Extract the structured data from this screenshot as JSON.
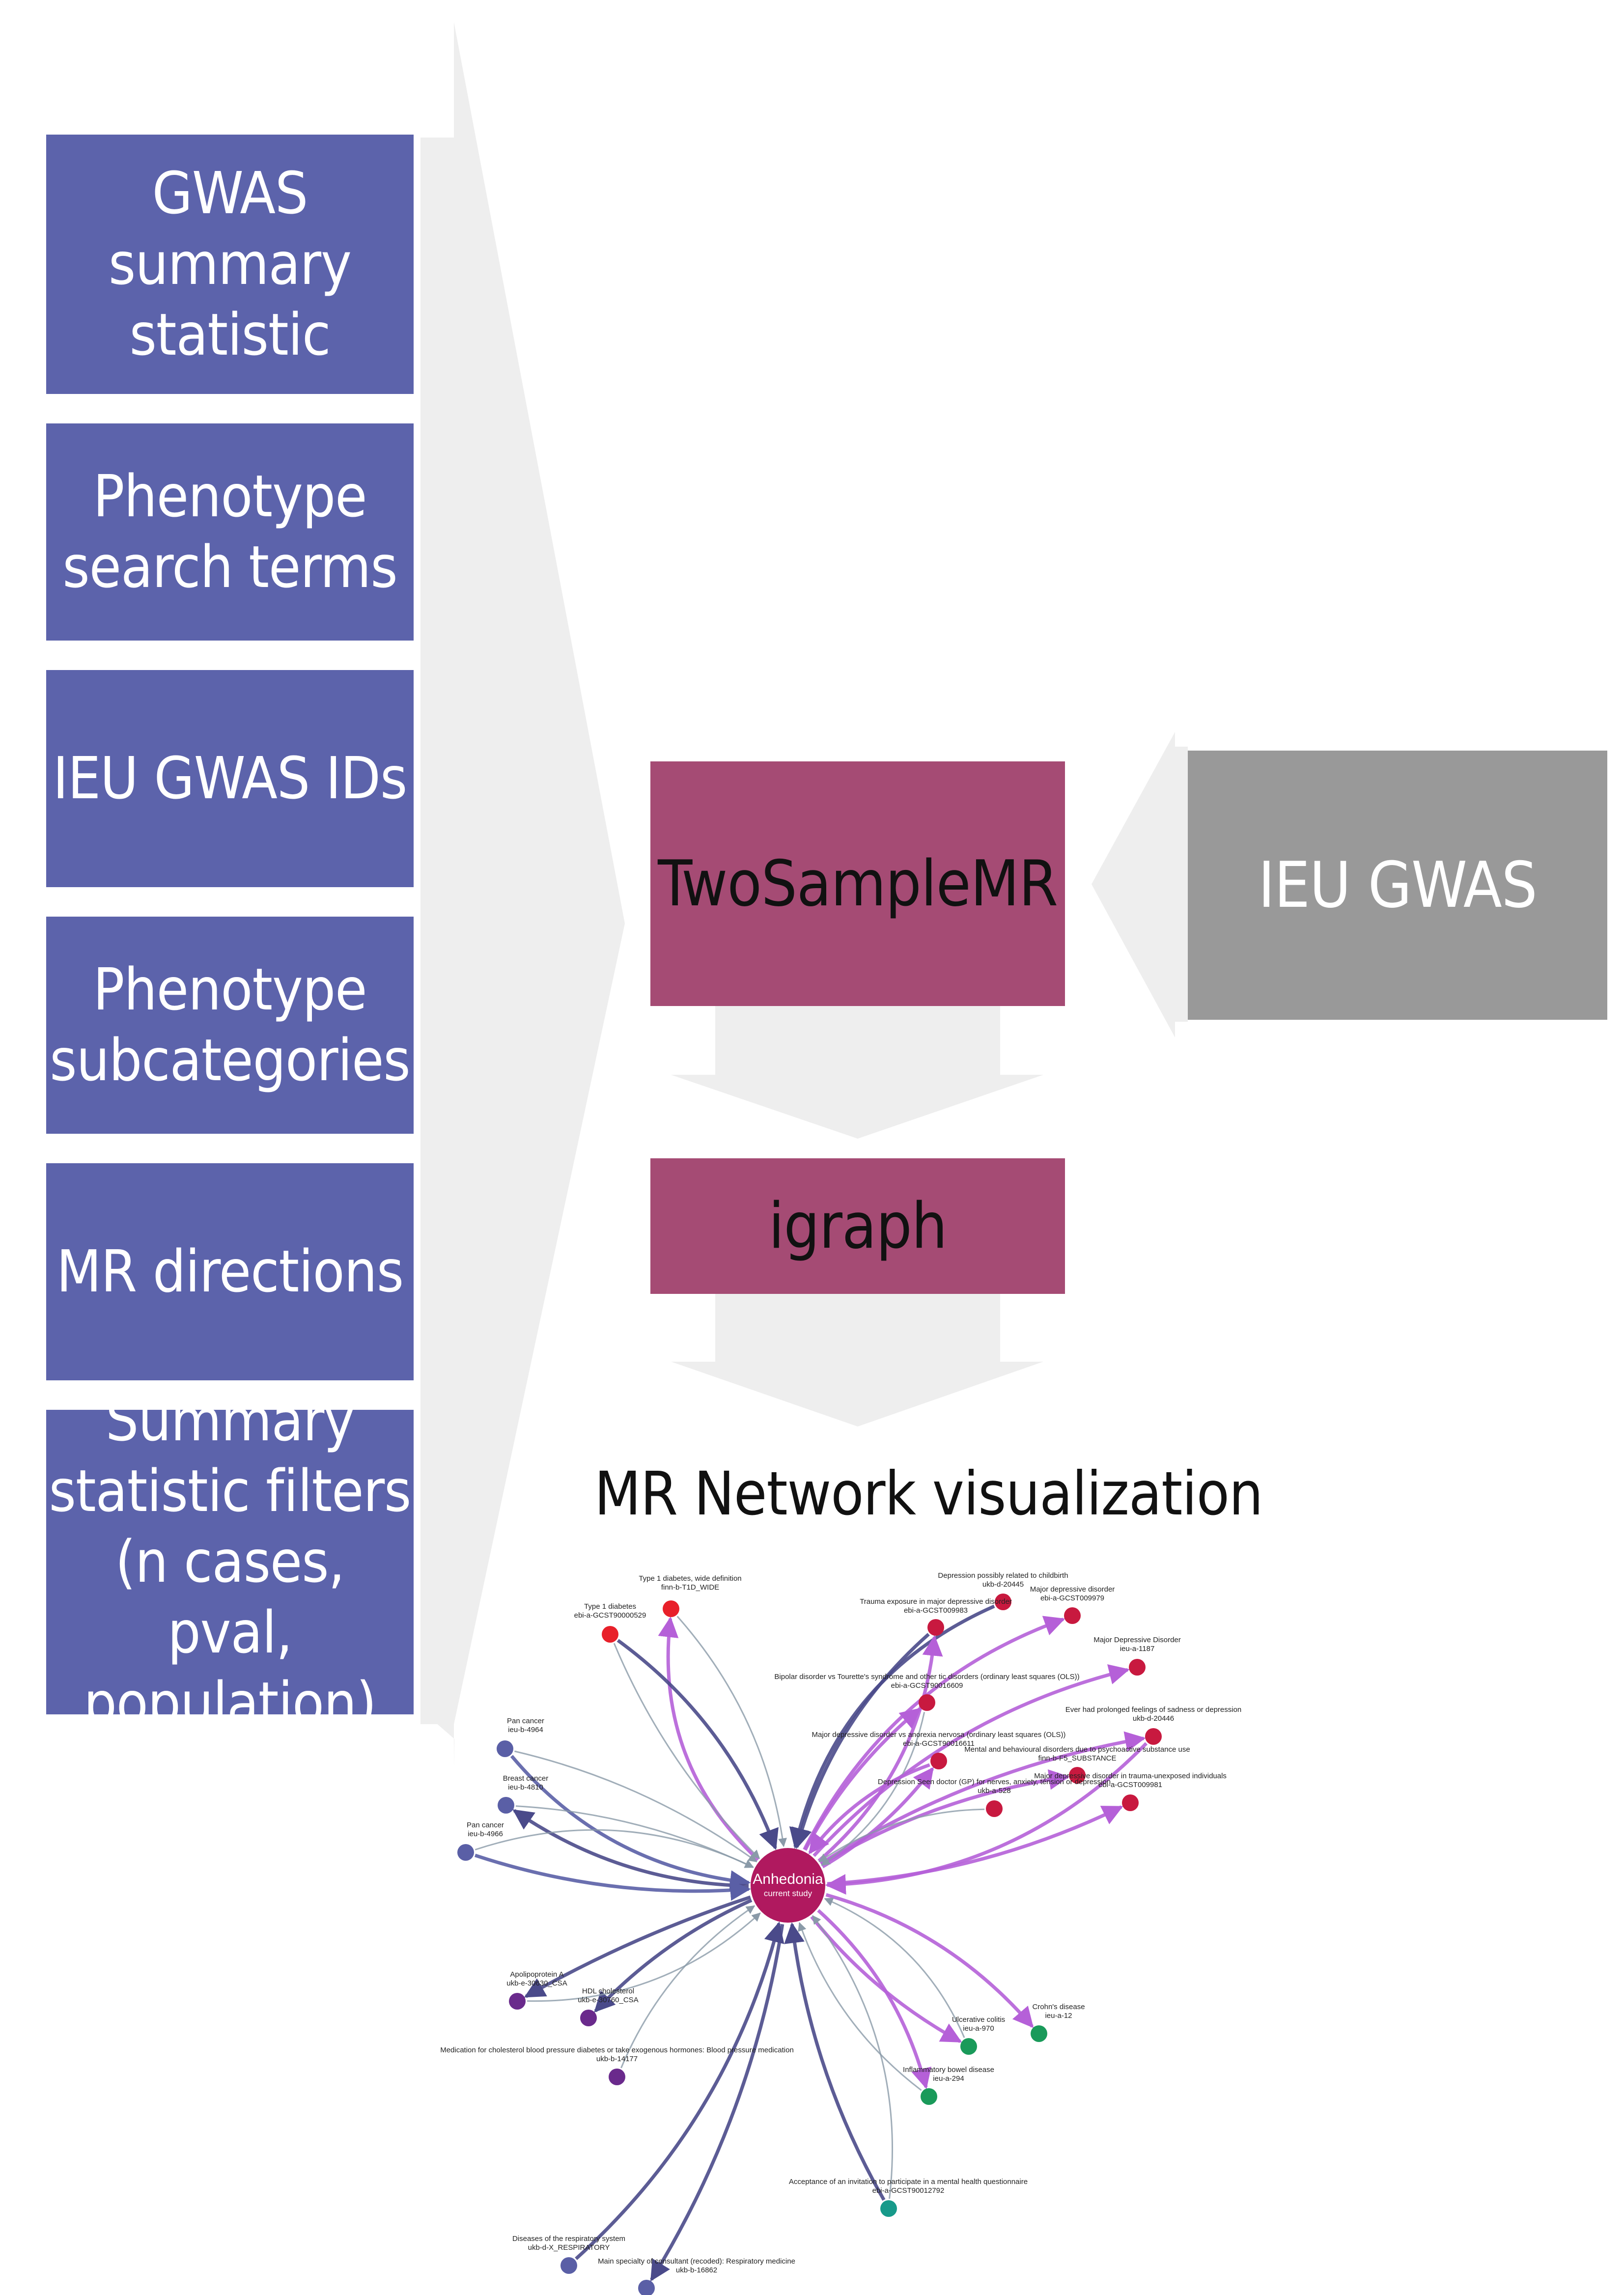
{
  "inputs": {
    "gwas": [
      "GWAS",
      "summary",
      "statistic"
    ],
    "search_terms": [
      "Phenotype",
      "search terms"
    ],
    "ieu_ids": [
      "IEU GWAS IDs"
    ],
    "subcategories": [
      "Phenotype",
      "subcategories"
    ],
    "directions": [
      "MR directions"
    ],
    "filters": [
      "Summary",
      "statistic filters",
      "(n cases, pval,",
      "population)"
    ]
  },
  "tools": {
    "twosample": "TwoSampleMR",
    "igraph": "igraph",
    "ieu_gwas": "IEU GWAS"
  },
  "network": {
    "title": "MR Network visualization",
    "center": [
      "Anhedonia",
      "current study"
    ],
    "nodes": [
      {
        "id": "t1d_wide",
        "lines": [
          "Type 1 diabetes, wide definition",
          "finn-b-T1D_WIDE"
        ],
        "color": "#e8202a"
      },
      {
        "id": "t1d",
        "lines": [
          "Type 1 diabetes",
          "ebi-a-GCST90000529"
        ],
        "color": "#e8202a"
      },
      {
        "id": "dep_child",
        "lines": [
          "Depression possibly related to childbirth",
          "ukb-d-20445"
        ],
        "color": "#c8193f"
      },
      {
        "id": "trauma",
        "lines": [
          "Trauma exposure in major depressive disorder",
          "ebi-a-GCST009983"
        ],
        "color": "#c8193f"
      },
      {
        "id": "mdd1",
        "lines": [
          "Major depressive disorder",
          "ebi-a-GCST009979"
        ],
        "color": "#c8193f"
      },
      {
        "id": "mdd_ieu",
        "lines": [
          "Major Depressive Disorder",
          "ieu-a-1187"
        ],
        "color": "#c8193f"
      },
      {
        "id": "bipolar",
        "lines": [
          "Bipolar disorder vs Tourette's syndrome and other tic disorders (ordinary least squares (OLS))",
          "ebi-a-GCST90016609"
        ],
        "color": "#c8193f"
      },
      {
        "id": "ever_sad",
        "lines": [
          "Ever had prolonged feelings of sadness or depression",
          "ukb-d-20446"
        ],
        "color": "#c8193f"
      },
      {
        "id": "mdd_anorexia",
        "lines": [
          "Major depressive disorder vs anorexia nervosa (ordinary least squares (OLS))",
          "ebi-a-GCST90016611"
        ],
        "color": "#c8193f"
      },
      {
        "id": "mental_subst",
        "lines": [
          "Mental and behavioural disorders due to psychoactive substance use",
          "finn-b-F5_SUBSTANCE"
        ],
        "color": "#c8193f"
      },
      {
        "id": "mdd_trauma",
        "lines": [
          "Major depressive disorder in trauma-unexposed individuals",
          "ebi-a-GCST009981"
        ],
        "color": "#c8193f"
      },
      {
        "id": "depression_gp",
        "lines": [
          "Depression    Seen doctor (GP) for nerves, anxiety, tension or depression",
          "ukb-a-528"
        ],
        "color": "#c8193f"
      },
      {
        "id": "pan_cancer1",
        "lines": [
          "Pan cancer",
          "ieu-b-4964"
        ],
        "color": "#5a5fa6"
      },
      {
        "id": "breast_cancer",
        "lines": [
          "Breast cancer",
          "ieu-b-4810"
        ],
        "color": "#5a5fa6"
      },
      {
        "id": "pan_cancer2",
        "lines": [
          "Pan cancer",
          "ieu-b-4966"
        ],
        "color": "#5a5fa6"
      },
      {
        "id": "apoA",
        "lines": [
          "Apolipoprotein A",
          "ukb-e-30630_CSA"
        ],
        "color": "#6a2a8c"
      },
      {
        "id": "hdl",
        "lines": [
          "HDL cholesterol",
          "ukb-e-30760_CSA"
        ],
        "color": "#6a2a8c"
      },
      {
        "id": "medication",
        "lines": [
          "Medication for cholesterol  blood pressure  diabetes  or take exogenous hormones: Blood pressure medication",
          "ukb-b-14177"
        ],
        "color": "#6a2a8c"
      },
      {
        "id": "crohn",
        "lines": [
          "Crohn's disease",
          "ieu-a-12"
        ],
        "color": "#1a9a5a"
      },
      {
        "id": "uc",
        "lines": [
          "Ulcerative colitis",
          "ieu-a-970"
        ],
        "color": "#1a9a5a"
      },
      {
        "id": "ibd",
        "lines": [
          "Inflammatory bowel disease",
          "ieu-a-294"
        ],
        "color": "#1a9a5a"
      },
      {
        "id": "acceptance",
        "lines": [
          "Acceptance of an invitation to participate in a mental health questionnaire",
          "ebi-a-GCST90012792"
        ],
        "color": "#179a8a"
      },
      {
        "id": "resp",
        "lines": [
          "Diseases of the respiratory system",
          "ukb-d-X_RESPIRATORY"
        ],
        "color": "#5a5fa6"
      },
      {
        "id": "resp_med",
        "lines": [
          "Main specialty of consultant (recoded): Respiratory medicine",
          "ukb-b-16862"
        ],
        "color": "#5a5fa6"
      }
    ]
  }
}
